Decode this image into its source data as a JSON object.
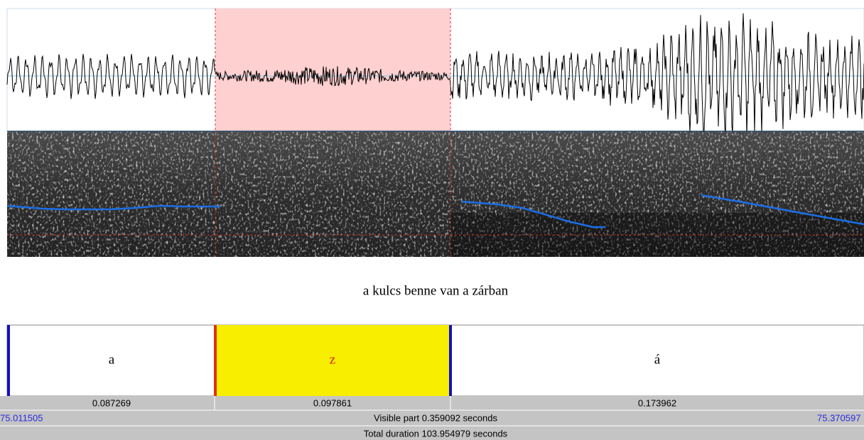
{
  "sentence": "a kulcs benne van a zárban",
  "intervals": [
    {
      "label": "a",
      "duration": 0.087269
    },
    {
      "label": "z",
      "duration": 0.097861
    },
    {
      "label": "á",
      "duration": 0.173962
    }
  ],
  "visible": {
    "start": 75.011505,
    "text": "Visible part 0.359092 seconds",
    "end": 75.370597
  },
  "total": "Total duration 103.954979 seconds"
}
